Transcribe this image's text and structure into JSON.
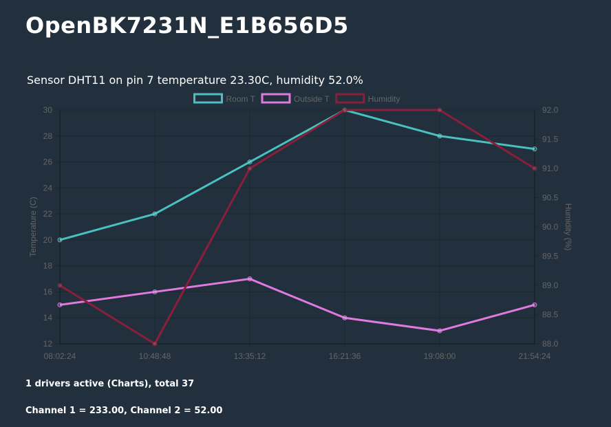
{
  "page": {
    "title": "OpenBK7231N_E1B656D5",
    "sensor_line": "Sensor DHT11 on pin 7 temperature 23.30C, humidity 52.0%",
    "drivers_line": "1 drivers active (Charts), total 37",
    "channels_line": "Channel 1 = 233.00, Channel 2 = 52.00"
  },
  "chart_data": {
    "type": "line",
    "categories": [
      "08:02:24",
      "10:48:48",
      "13:35:12",
      "16:21:36",
      "19:08:00",
      "21:54:24"
    ],
    "y_left": {
      "label": "Temperature (C)",
      "ylim": [
        12,
        30
      ],
      "ticks": [
        "30",
        "28",
        "26",
        "24",
        "22",
        "20",
        "18",
        "16",
        "14",
        "12"
      ]
    },
    "y_right": {
      "label": "Humidity (%)",
      "ylim": [
        88.0,
        92.0
      ],
      "ticks": [
        "92.0",
        "91.5",
        "91.0",
        "90.5",
        "90.0",
        "89.5",
        "89.0",
        "88.5",
        "88.0"
      ]
    },
    "grid": true,
    "legend_position": "top",
    "series": [
      {
        "name": "Room T",
        "axis": "left",
        "color": "#4bc0c0",
        "values": [
          20,
          22,
          26,
          30,
          28,
          27
        ]
      },
      {
        "name": "Outside T",
        "axis": "left",
        "color": "#e079e0",
        "values": [
          15,
          16,
          17,
          14,
          13,
          15
        ]
      },
      {
        "name": "Humidity",
        "axis": "right",
        "color": "#8b1e3a",
        "values": [
          89.0,
          88.0,
          91.0,
          92.0,
          92.0,
          91.0
        ]
      }
    ]
  }
}
